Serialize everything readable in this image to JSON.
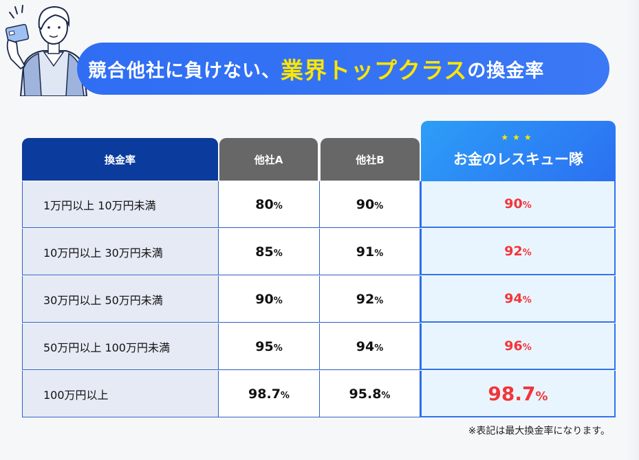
{
  "title": {
    "before": "競合他社に負けない、",
    "highlight": "業界トップクラス",
    "after": "の換金率"
  },
  "table": {
    "headers": {
      "rate": "換金率",
      "company_a": "他社A",
      "company_b": "他社B",
      "us": "お金のレスキュー隊",
      "stars": "★★★"
    },
    "rows": [
      {
        "label": "1万円以上 10万円未満",
        "a": "80",
        "b": "90",
        "us": "90"
      },
      {
        "label": "10万円以上 30万円未満",
        "a": "85",
        "b": "91",
        "us": "92"
      },
      {
        "label": "30万円以上 50万円未満",
        "a": "90",
        "b": "92",
        "us": "94"
      },
      {
        "label": "50万円以上 100万円未満",
        "a": "95",
        "b": "94",
        "us": "96"
      },
      {
        "label": "100万円以上",
        "a": "98.7",
        "b": "95.8",
        "us": "98.7"
      }
    ],
    "percent_sign": "%"
  },
  "note": "※表記は最大換金率になります。",
  "colors": {
    "banner": "#2f6df3",
    "highlight": "#ffe600",
    "rate_header": "#0b3b9c",
    "competitor_header": "#676767",
    "us_value": "#f2353a"
  }
}
